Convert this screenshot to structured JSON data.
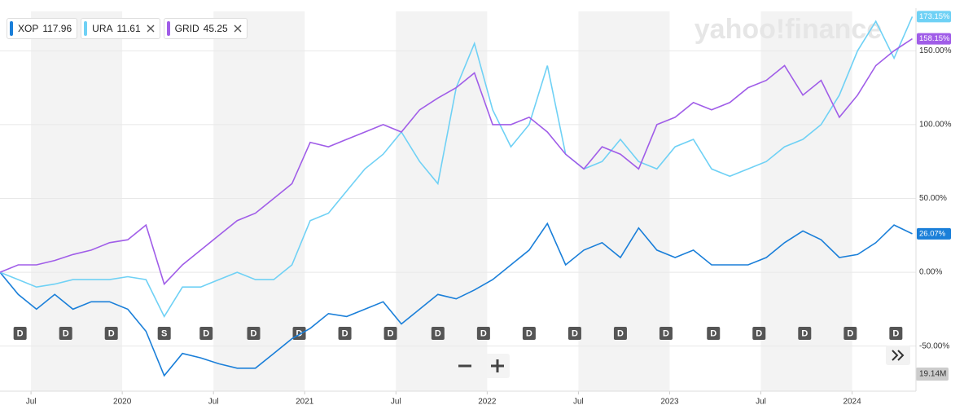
{
  "chart_data": {
    "type": "line",
    "watermark": "yahoo!finance",
    "x": [
      2019.33,
      2019.43,
      2019.53,
      2019.63,
      2019.73,
      2019.83,
      2019.93,
      2020.03,
      2020.13,
      2020.23,
      2020.33,
      2020.43,
      2020.53,
      2020.63,
      2020.73,
      2020.83,
      2020.93,
      2021.03,
      2021.13,
      2021.23,
      2021.33,
      2021.43,
      2021.53,
      2021.63,
      2021.73,
      2021.83,
      2021.93,
      2022.03,
      2022.13,
      2022.23,
      2022.33,
      2022.43,
      2022.53,
      2022.63,
      2022.73,
      2022.83,
      2022.93,
      2023.03,
      2023.13,
      2023.23,
      2023.33,
      2023.43,
      2023.53,
      2023.63,
      2023.73,
      2023.83,
      2023.93,
      2024.03,
      2024.13,
      2024.23,
      2024.33
    ],
    "xlim": [
      2019.33,
      2024.35
    ],
    "xticks": [
      {
        "value": 2019.5,
        "label": "Jul"
      },
      2020,
      {
        "value": 2020.5,
        "label": "Jul"
      },
      2021,
      {
        "value": 2021.5,
        "label": "Jul"
      },
      2022,
      {
        "value": 2022.5,
        "label": "Jul"
      },
      2023,
      {
        "value": 2023.5,
        "label": "Jul"
      },
      2024
    ],
    "ylim": [
      -80,
      180
    ],
    "yticks": [
      {
        "value": -50,
        "label": "-50.00%"
      },
      {
        "value": 0,
        "label": "0.00%"
      },
      {
        "value": 50,
        "label": "50.00%"
      },
      {
        "value": 100,
        "label": "100.00%"
      },
      {
        "value": 150,
        "label": "150.00%"
      }
    ],
    "grid": true,
    "series": [
      {
        "name": "XOP",
        "price": 117.96,
        "color": "#1a7fd9",
        "values": [
          0,
          -15,
          -25,
          -15,
          -25,
          -20,
          -20,
          -25,
          -40,
          -70,
          -55,
          -58,
          -62,
          -65,
          -65,
          -55,
          -45,
          -38,
          -28,
          -30,
          -25,
          -20,
          -35,
          -25,
          -15,
          -18,
          -12,
          -5,
          5,
          15,
          33,
          5,
          15,
          20,
          10,
          30,
          15,
          10,
          15,
          5,
          5,
          5,
          10,
          20,
          28,
          22,
          10,
          12,
          20,
          32,
          26.07
        ],
        "value_labels": [
          null,
          null,
          null,
          null,
          null,
          null,
          null,
          null,
          null,
          null,
          null,
          null,
          null,
          null,
          null,
          null,
          null,
          null,
          null,
          null,
          null,
          null,
          null,
          null,
          null,
          null,
          null,
          null,
          null,
          null,
          null,
          null,
          null,
          null,
          null,
          null,
          null,
          null,
          null,
          null,
          null,
          null,
          null,
          null,
          null,
          null,
          null,
          null,
          null,
          null,
          "26.07%"
        ]
      },
      {
        "name": "URA",
        "price": 11.61,
        "color": "#6fd1f5",
        "values": [
          0,
          -5,
          -10,
          -8,
          -5,
          -5,
          -5,
          -3,
          -5,
          -30,
          -10,
          -10,
          -5,
          0,
          -5,
          -5,
          5,
          35,
          40,
          55,
          70,
          80,
          95,
          75,
          60,
          125,
          155,
          110,
          85,
          100,
          140,
          80,
          70,
          75,
          90,
          75,
          70,
          85,
          90,
          70,
          65,
          70,
          75,
          85,
          90,
          100,
          120,
          150,
          170,
          145,
          173.15
        ],
        "value_labels": [
          null,
          null,
          null,
          null,
          null,
          null,
          null,
          null,
          null,
          null,
          null,
          null,
          null,
          null,
          null,
          null,
          null,
          null,
          null,
          null,
          null,
          null,
          null,
          null,
          null,
          null,
          null,
          null,
          null,
          null,
          null,
          null,
          null,
          null,
          null,
          null,
          null,
          null,
          null,
          null,
          null,
          null,
          null,
          null,
          null,
          null,
          null,
          null,
          null,
          null,
          "173.15%"
        ]
      },
      {
        "name": "GRID",
        "price": 45.25,
        "color": "#a05de8",
        "values": [
          0,
          5,
          5,
          8,
          12,
          15,
          20,
          22,
          32,
          -8,
          5,
          15,
          25,
          35,
          40,
          50,
          60,
          88,
          85,
          90,
          95,
          100,
          95,
          110,
          118,
          125,
          135,
          100,
          100,
          105,
          95,
          80,
          70,
          85,
          80,
          70,
          100,
          105,
          115,
          110,
          115,
          125,
          130,
          140,
          120,
          130,
          105,
          120,
          140,
          150,
          158.15
        ],
        "value_labels": [
          null,
          null,
          null,
          null,
          null,
          null,
          null,
          null,
          null,
          null,
          null,
          null,
          null,
          null,
          null,
          null,
          null,
          null,
          null,
          null,
          null,
          null,
          null,
          null,
          null,
          null,
          null,
          null,
          null,
          null,
          null,
          null,
          null,
          null,
          null,
          null,
          null,
          null,
          null,
          null,
          null,
          null,
          null,
          null,
          null,
          null,
          null,
          null,
          null,
          null,
          "158.15%"
        ]
      }
    ],
    "events": [
      {
        "x": 2019.44,
        "label": "D"
      },
      {
        "x": 2019.69,
        "label": "D"
      },
      {
        "x": 2019.94,
        "label": "D"
      },
      {
        "x": 2020.23,
        "label": "S"
      },
      {
        "x": 2020.46,
        "label": "D"
      },
      {
        "x": 2020.72,
        "label": "D"
      },
      {
        "x": 2020.97,
        "label": "D"
      },
      {
        "x": 2021.22,
        "label": "D"
      },
      {
        "x": 2021.47,
        "label": "D"
      },
      {
        "x": 2021.73,
        "label": "D"
      },
      {
        "x": 2021.98,
        "label": "D"
      },
      {
        "x": 2022.23,
        "label": "D"
      },
      {
        "x": 2022.48,
        "label": "D"
      },
      {
        "x": 2022.73,
        "label": "D"
      },
      {
        "x": 2022.98,
        "label": "D"
      },
      {
        "x": 2023.24,
        "label": "D"
      },
      {
        "x": 2023.49,
        "label": "D"
      },
      {
        "x": 2023.74,
        "label": "D"
      },
      {
        "x": 2023.99,
        "label": "D"
      },
      {
        "x": 2024.24,
        "label": "D"
      }
    ],
    "volume_label": "19.14M"
  }
}
